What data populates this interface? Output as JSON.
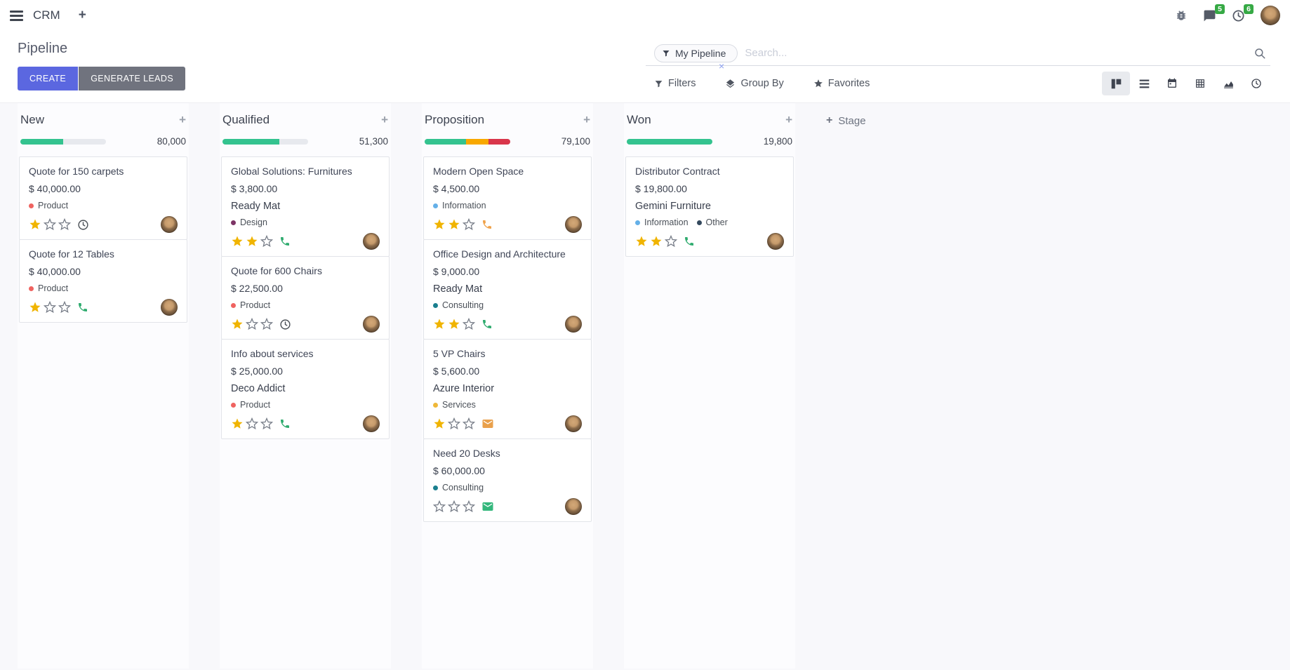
{
  "navbar": {
    "app_name": "CRM",
    "new_tab_glyph": "+",
    "messages_count": "5",
    "activities_count": "6"
  },
  "control_panel": {
    "title": "Pipeline",
    "create_label": "CREATE",
    "generate_leads_label": "GENERATE LEADS",
    "search": {
      "facet_label": "My Pipeline",
      "placeholder": "Search...",
      "remove_glyph": "×"
    },
    "filters_label": "Filters",
    "group_by_label": "Group By",
    "favorites_label": "Favorites"
  },
  "colors": {
    "accent": "#5b67e0",
    "progress_green": "#34c38f",
    "progress_amber": "#f8a800",
    "progress_red": "#d9364b",
    "star_gold": "#f0b400",
    "badge_green": "#36a945"
  },
  "board": {
    "quick_add_glyph": "+",
    "add_stage_plus": "+",
    "add_stage_label": "Stage",
    "columns": [
      {
        "name": "New",
        "total": "80,000",
        "progress": [
          {
            "color": "#34c38f",
            "pct": 50
          }
        ],
        "cards": [
          {
            "title": "Quote for 150 carpets",
            "amount": "$ 40,000.00",
            "tags": [
              {
                "label": "Product",
                "color": "#ef6360"
              }
            ],
            "stars": 1,
            "activity": {
              "type": "clock",
              "color": "#4a5056"
            }
          },
          {
            "title": "Quote for 12 Tables",
            "amount": "$ 40,000.00",
            "tags": [
              {
                "label": "Product",
                "color": "#ef6360"
              }
            ],
            "stars": 1,
            "activity": {
              "type": "phone",
              "color": "#2eab6e"
            }
          }
        ]
      },
      {
        "name": "Qualified",
        "total": "51,300",
        "progress": [
          {
            "color": "#34c38f",
            "pct": 66
          }
        ],
        "cards": [
          {
            "title": "Global Solutions: Furnitures",
            "amount": "$ 3,800.00",
            "partner": "Ready Mat",
            "tags": [
              {
                "label": "Design",
                "color": "#7d3465"
              }
            ],
            "stars": 2,
            "activity": {
              "type": "phone",
              "color": "#2eab6e"
            }
          },
          {
            "title": "Quote for 600 Chairs",
            "amount": "$ 22,500.00",
            "tags": [
              {
                "label": "Product",
                "color": "#ef6360"
              }
            ],
            "stars": 1,
            "activity": {
              "type": "clock",
              "color": "#4a5056"
            }
          },
          {
            "title": "Info about services",
            "amount": "$ 25,000.00",
            "partner": "Deco Addict",
            "tags": [
              {
                "label": "Product",
                "color": "#ef6360"
              }
            ],
            "stars": 1,
            "activity": {
              "type": "phone",
              "color": "#2eab6e"
            }
          }
        ]
      },
      {
        "name": "Proposition",
        "total": "79,100",
        "progress": [
          {
            "color": "#34c38f",
            "pct": 48
          },
          {
            "color": "#f8a800",
            "pct": 27
          },
          {
            "color": "#d9364b",
            "pct": 25
          }
        ],
        "cards": [
          {
            "title": "Modern Open Space",
            "amount": "$ 4,500.00",
            "tags": [
              {
                "label": "Information",
                "color": "#64b0e8"
              }
            ],
            "stars": 2,
            "activity": {
              "type": "phone",
              "color": "#f0a24a"
            }
          },
          {
            "title": "Office Design and Architecture",
            "amount": "$ 9,000.00",
            "partner": "Ready Mat",
            "tags": [
              {
                "label": "Consulting",
                "color": "#1a7f8e"
              }
            ],
            "stars": 2,
            "activity": {
              "type": "phone",
              "color": "#2eab6e"
            }
          },
          {
            "title": "5 VP Chairs",
            "amount": "$ 5,600.00",
            "partner": "Azure Interior",
            "tags": [
              {
                "label": "Services",
                "color": "#efb839"
              }
            ],
            "stars": 1,
            "activity": {
              "type": "mail",
              "color": "#e9a04b"
            }
          },
          {
            "title": "Need 20 Desks",
            "amount": "$ 60,000.00",
            "tags": [
              {
                "label": "Consulting",
                "color": "#1a7f8e"
              }
            ],
            "stars": 0,
            "activity": {
              "type": "mail",
              "color": "#34b77c"
            }
          }
        ]
      },
      {
        "name": "Won",
        "total": "19,800",
        "progress": [
          {
            "color": "#34c38f",
            "pct": 100
          }
        ],
        "cards": [
          {
            "title": "Distributor Contract",
            "amount": "$ 19,800.00",
            "partner": "Gemini Furniture",
            "tags": [
              {
                "label": "Information",
                "color": "#64b0e8"
              },
              {
                "label": "Other",
                "color": "#34495e"
              }
            ],
            "stars": 2,
            "activity": {
              "type": "phone",
              "color": "#2eab6e"
            }
          }
        ]
      }
    ]
  }
}
